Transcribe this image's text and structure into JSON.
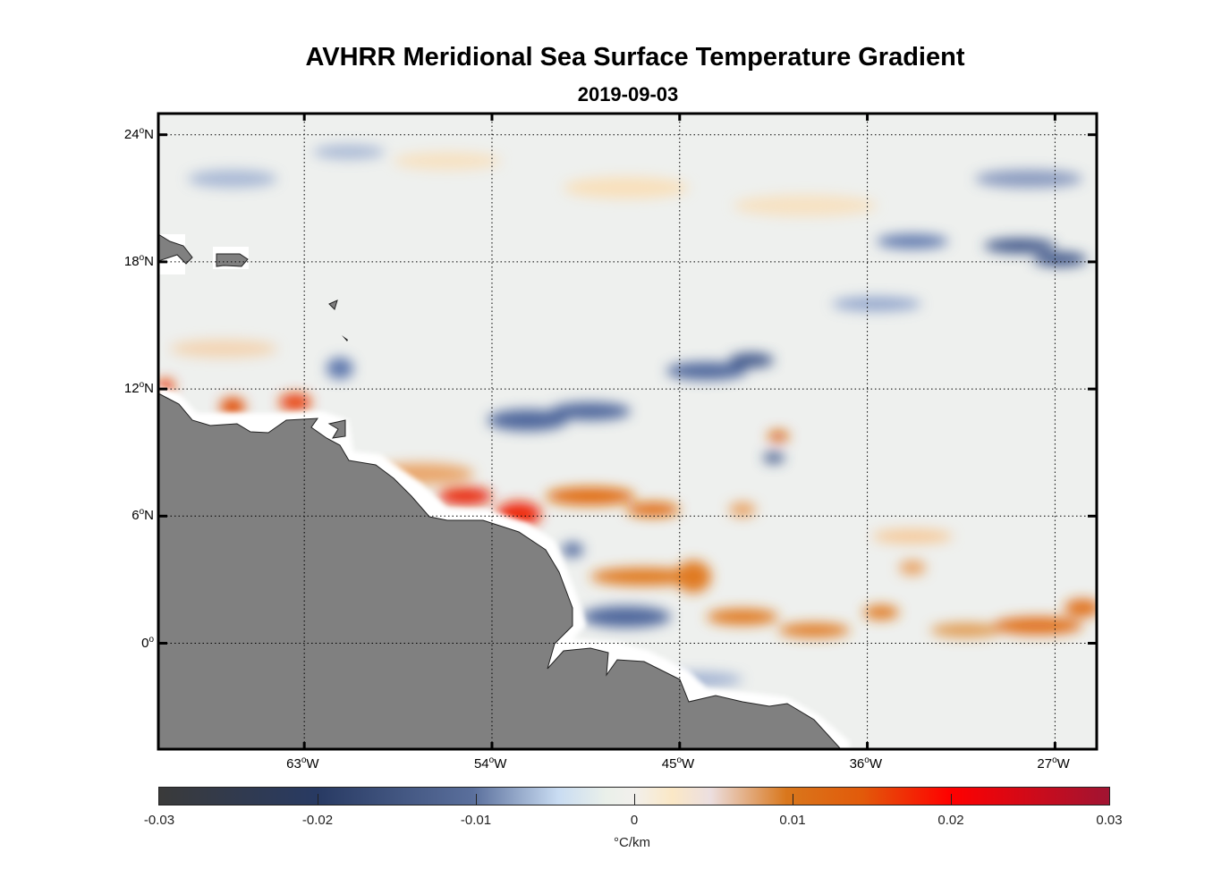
{
  "chart_data": {
    "type": "heatmap",
    "title": "AVHRR Meridional Sea Surface Temperature Gradient",
    "subtitle": "2019-09-03",
    "lon_range": [
      -70,
      -25
    ],
    "lat_range": [
      -5,
      25
    ],
    "x_ticks": [
      {
        "value": -63,
        "label": "63",
        "hemi": "W"
      },
      {
        "value": -54,
        "label": "54",
        "hemi": "W"
      },
      {
        "value": -45,
        "label": "45",
        "hemi": "W"
      },
      {
        "value": -36,
        "label": "36",
        "hemi": "W"
      },
      {
        "value": -27,
        "label": "27",
        "hemi": "W"
      }
    ],
    "y_ticks": [
      {
        "value": 24,
        "label": "24",
        "hemi": "N"
      },
      {
        "value": 18,
        "label": "18",
        "hemi": "N"
      },
      {
        "value": 12,
        "label": "12",
        "hemi": "N"
      },
      {
        "value": 6,
        "label": "6",
        "hemi": "N"
      },
      {
        "value": 0,
        "label": "0",
        "hemi": ""
      }
    ],
    "grid": true,
    "colorbar": {
      "range": [
        -0.03,
        0.03
      ],
      "ticks": [
        -0.03,
        -0.02,
        -0.01,
        0,
        0.01,
        0.02,
        0.03
      ],
      "tick_labels": [
        "-0.03",
        "-0.02",
        "-0.01",
        "0",
        "0.01",
        "0.02",
        "0.03"
      ],
      "label": "°C/km",
      "placement": "bottom",
      "colors": [
        "#3a3a3a",
        "#283a63",
        "#5a6f9c",
        "#f2f0ec",
        "#d9771c",
        "#ff0000",
        "#a01432"
      ]
    },
    "land_color": "#808080",
    "deg_symbol": "o"
  }
}
